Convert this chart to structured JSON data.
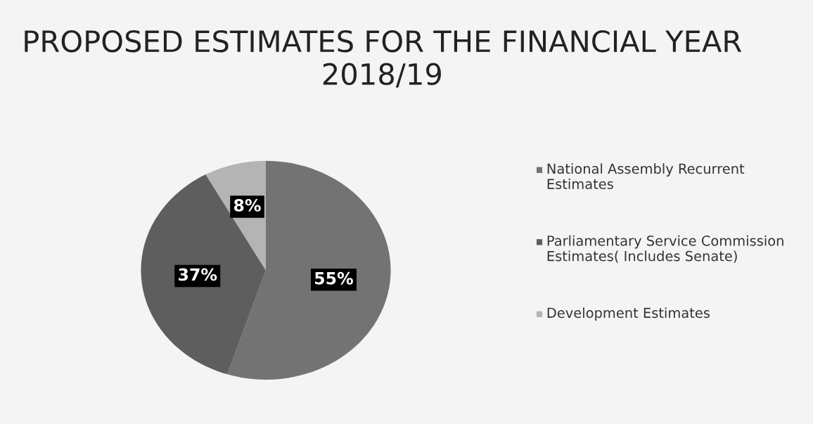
{
  "chart_data": {
    "type": "pie",
    "title": "PROPOSED ESTIMATES FOR THE FINANCIAL YEAR 2018/19",
    "categories": [
      "National Assembly Recurrent Estimates",
      "Parliamentary Service Commission Estimates( Includes Senate)",
      "Development Estimates"
    ],
    "values": [
      55,
      37,
      8
    ],
    "value_labels": [
      "55%",
      "37%",
      "8%"
    ],
    "colors": [
      "#737373",
      "#5e5e5e",
      "#b4b4b4"
    ],
    "legend": "right"
  }
}
